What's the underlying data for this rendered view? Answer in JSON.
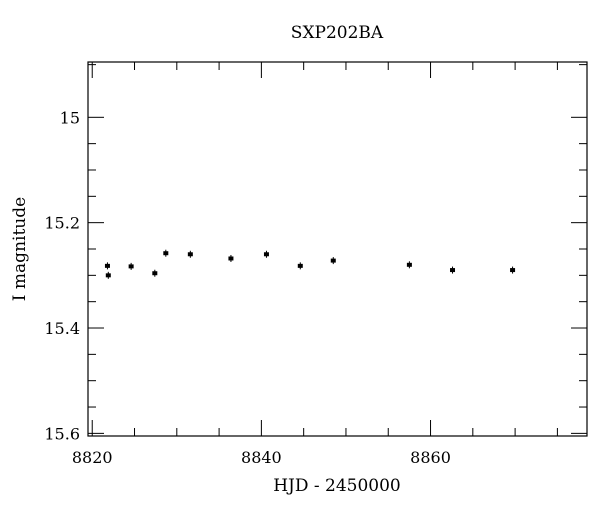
{
  "chart_data": {
    "type": "scatter",
    "title": "SXP202BA",
    "xlabel": "HJD - 2450000",
    "ylabel": "I magnitude",
    "xlim": [
      8819.5,
      8878.5
    ],
    "ylim": [
      15.605,
      14.895
    ],
    "y_inverted": true,
    "grid": false,
    "legend": "none",
    "x_ticks": {
      "major": [
        8820,
        8840,
        8860
      ],
      "minor": [
        8825,
        8830,
        8835,
        8845,
        8850,
        8855,
        8865,
        8870,
        8875
      ],
      "labels": [
        "8820",
        "8840",
        "8860"
      ]
    },
    "y_ticks": {
      "major": [
        15.0,
        15.2,
        15.4,
        15.6
      ],
      "minor": [
        14.9,
        15.05,
        15.1,
        15.15,
        15.25,
        15.3,
        15.35,
        15.45,
        15.5,
        15.55
      ],
      "labels": [
        "15",
        "15.2",
        "15.4",
        "15.6"
      ]
    },
    "series": [
      {
        "marker_color": "#000000",
        "x": [
          8821.8,
          8821.9,
          8824.6,
          8827.4,
          8828.7,
          8831.6,
          8836.4,
          8840.6,
          8844.6,
          8848.5,
          8857.5,
          8862.6,
          8869.7
        ],
        "y": [
          15.282,
          15.3,
          15.283,
          15.296,
          15.258,
          15.26,
          15.268,
          15.26,
          15.282,
          15.272,
          15.28,
          15.29,
          15.29
        ]
      }
    ]
  }
}
